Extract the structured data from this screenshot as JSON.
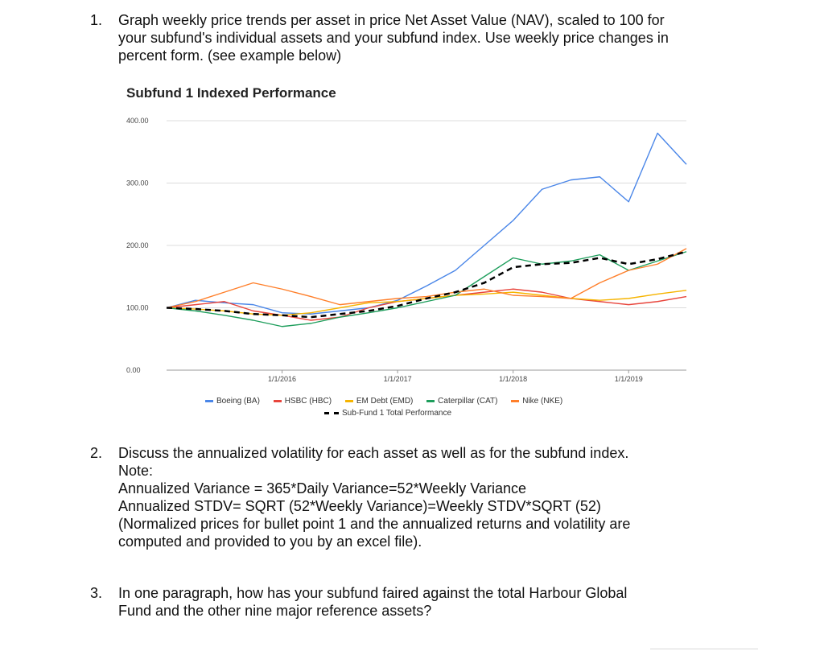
{
  "questions": [
    {
      "number": "1.",
      "lines": [
        "Graph weekly price trends per asset in price Net Asset Value (NAV), scaled to 100 for",
        "your subfund's individual assets and your subfund index. Use weekly price changes in",
        "percent form. (see example below)"
      ]
    },
    {
      "number": "2.",
      "lines": [
        "Discuss the annualized volatility for each asset as well as for the subfund index.",
        "Note:",
        "Annualized Variance = 365*Daily Variance=52*Weekly Variance",
        "Annualized STDV= SQRT (52*Weekly Variance)=Weekly STDV*SQRT (52)",
        "(Normalized prices for bullet point 1 and the annualized returns and volatility are",
        "computed and provided to you by an excel file)."
      ]
    },
    {
      "number": "3.",
      "lines": [
        "In one paragraph, how has your subfund faired against the total Harbour Global",
        "Fund and the other nine major reference assets?"
      ]
    }
  ],
  "chart_data": {
    "type": "line",
    "title": "Subfund 1 Indexed Performance",
    "xlabel": "",
    "ylabel": "",
    "ylim": [
      0,
      400
    ],
    "yticks": [
      "0.00",
      "100.00",
      "200.00",
      "300.00",
      "400.00"
    ],
    "xlim": [
      2015.0,
      2019.5
    ],
    "xticks": [
      {
        "label": "1/1/2016",
        "x": 2016.0
      },
      {
        "label": "1/1/2017",
        "x": 2017.0
      },
      {
        "label": "1/1/2018",
        "x": 2018.0
      },
      {
        "label": "1/1/2019",
        "x": 2019.0
      }
    ],
    "grid": true,
    "legend_position": "bottom",
    "x": [
      2015.0,
      2015.25,
      2015.5,
      2015.75,
      2016.0,
      2016.25,
      2016.5,
      2016.75,
      2017.0,
      2017.25,
      2017.5,
      2017.75,
      2018.0,
      2018.25,
      2018.5,
      2018.75,
      2019.0,
      2019.25,
      2019.5
    ],
    "series": [
      {
        "name": "Boeing (BA)",
        "color": "#4a86e8",
        "dash": false,
        "values": [
          100,
          112,
          108,
          105,
          92,
          90,
          95,
          100,
          112,
          135,
          160,
          200,
          240,
          290,
          305,
          310,
          270,
          380,
          330
        ]
      },
      {
        "name": "HSBC (HBC)",
        "color": "#e8453c",
        "dash": false,
        "values": [
          100,
          105,
          110,
          95,
          88,
          80,
          85,
          100,
          110,
          115,
          120,
          125,
          130,
          125,
          115,
          110,
          105,
          110,
          118
        ]
      },
      {
        "name": "EM Debt (EMD)",
        "color": "#f6b400",
        "dash": false,
        "values": [
          100,
          98,
          95,
          90,
          88,
          92,
          100,
          108,
          110,
          115,
          120,
          122,
          125,
          120,
          115,
          112,
          115,
          122,
          128
        ]
      },
      {
        "name": "Caterpillar (CAT)",
        "color": "#1e9e5c",
        "dash": false,
        "values": [
          100,
          95,
          88,
          80,
          70,
          75,
          85,
          92,
          100,
          110,
          120,
          150,
          180,
          170,
          175,
          185,
          160,
          175,
          190
        ]
      },
      {
        "name": "Nike (NKE)",
        "color": "#ff7f2a",
        "dash": false,
        "values": [
          100,
          110,
          125,
          140,
          130,
          118,
          105,
          110,
          115,
          118,
          125,
          130,
          120,
          118,
          115,
          140,
          160,
          170,
          195
        ]
      },
      {
        "name": "Sub-Fund 1 Total Performance",
        "color": "#000000",
        "dash": true,
        "values": [
          100,
          98,
          95,
          90,
          88,
          85,
          90,
          95,
          103,
          115,
          125,
          140,
          165,
          170,
          172,
          180,
          170,
          178,
          190
        ]
      }
    ]
  }
}
